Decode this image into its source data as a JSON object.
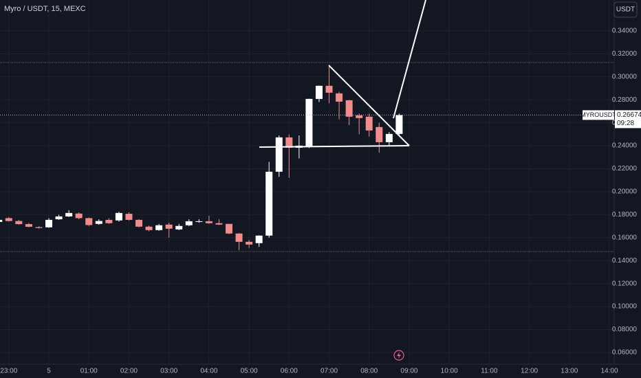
{
  "chart_data": {
    "type": "candlestick",
    "title": "Myro / USDT, 15, MEXC",
    "currency": "USDT",
    "symbol_label": "MYROUSDT",
    "last_price": 0.26674,
    "countdown": "09:28",
    "up_color": "#ffffff",
    "down_color": "#f28b8b",
    "x": [
      -0.25,
      0,
      0.25,
      0.5,
      0.75,
      1,
      1.25,
      1.5,
      1.75,
      2,
      2.25,
      2.5,
      2.75,
      3,
      3.25,
      3.5,
      3.75,
      4,
      4.25,
      4.5,
      4.75,
      5,
      5.25,
      5.5,
      5.75,
      6,
      6.25,
      6.5,
      6.75,
      7,
      7.25,
      7.5,
      7.75,
      8,
      8.25,
      8.5,
      8.75,
      9,
      9.25,
      9.5,
      9.75
    ],
    "open": [
      0.1737,
      0.177,
      0.1745,
      0.1718,
      0.1692,
      0.169,
      0.176,
      0.1785,
      0.181,
      0.177,
      0.172,
      0.1755,
      0.175,
      0.1808,
      0.1755,
      0.1696,
      0.1666,
      0.1714,
      0.1672,
      0.1708,
      0.1737,
      0.1743,
      0.1726,
      0.172,
      0.1636,
      0.1564,
      0.1552,
      0.1618,
      0.2174,
      0.2473,
      0.2383,
      0.2395,
      0.2808,
      0.2922,
      0.2856,
      0.2796,
      0.2665,
      0.2653,
      0.2563,
      0.2431,
      0.2503
    ],
    "high": [
      0.176,
      0.178,
      0.1755,
      0.1728,
      0.17,
      0.177,
      0.18,
      0.184,
      0.182,
      0.1775,
      0.176,
      0.177,
      0.1825,
      0.182,
      0.176,
      0.1705,
      0.172,
      0.173,
      0.172,
      0.176,
      0.176,
      0.179,
      0.176,
      0.1722,
      0.164,
      0.158,
      0.162,
      0.226,
      0.249,
      0.25,
      0.249,
      0.281,
      0.2925,
      0.309,
      0.287,
      0.28,
      0.268,
      0.268,
      0.26,
      0.252,
      0.268
    ],
    "low": [
      0.1725,
      0.174,
      0.1712,
      0.169,
      0.168,
      0.1686,
      0.1755,
      0.178,
      0.176,
      0.17,
      0.1712,
      0.172,
      0.174,
      0.175,
      0.169,
      0.1655,
      0.166,
      0.16,
      0.1665,
      0.17,
      0.173,
      0.172,
      0.171,
      0.163,
      0.149,
      0.151,
      0.152,
      0.16,
      0.213,
      0.212,
      0.229,
      0.238,
      0.278,
      0.277,
      0.263,
      0.258,
      0.25,
      0.248,
      0.234,
      0.24,
      0.249
    ],
    "close": [
      0.1755,
      0.1745,
      0.1718,
      0.1695,
      0.1684,
      0.1755,
      0.1785,
      0.1815,
      0.177,
      0.171,
      0.1745,
      0.1726,
      0.1815,
      0.1755,
      0.1696,
      0.1666,
      0.1708,
      0.1678,
      0.1702,
      0.1743,
      0.1743,
      0.1726,
      0.1714,
      0.1636,
      0.1564,
      0.154,
      0.1618,
      0.2174,
      0.2473,
      0.2383,
      0.2401,
      0.2808,
      0.2922,
      0.2862,
      0.2784,
      0.2653,
      0.2641,
      0.2533,
      0.2431,
      0.2503,
      0.2667
    ],
    "xlim": [
      -0.22,
      15.12
    ],
    "xticks": [
      {
        "value": 0,
        "label": "23:00"
      },
      {
        "value": 1,
        "label": "5"
      },
      {
        "value": 2,
        "label": "01:00"
      },
      {
        "value": 3,
        "label": "02:00"
      },
      {
        "value": 4,
        "label": "03:00"
      },
      {
        "value": 5,
        "label": "04:00"
      },
      {
        "value": 6,
        "label": "05:00"
      },
      {
        "value": 7,
        "label": "06:00"
      },
      {
        "value": 8,
        "label": "07:00"
      },
      {
        "value": 9,
        "label": "08:00"
      },
      {
        "value": 10,
        "label": "09:00"
      },
      {
        "value": 11,
        "label": "10:00"
      },
      {
        "value": 12,
        "label": "11:00"
      },
      {
        "value": 13,
        "label": "12:00"
      },
      {
        "value": 14,
        "label": "13:00"
      },
      {
        "value": 15,
        "label": "14:00"
      }
    ],
    "ylim": [
      0.0498,
      0.3669
    ],
    "yticks": [
      {
        "value": 0.06,
        "label": "0.06000"
      },
      {
        "value": 0.08,
        "label": "0.08000"
      },
      {
        "value": 0.1,
        "label": "0.10000"
      },
      {
        "value": 0.12,
        "label": "0.12000"
      },
      {
        "value": 0.14,
        "label": "0.14000"
      },
      {
        "value": 0.16,
        "label": "0.16000"
      },
      {
        "value": 0.18,
        "label": "0.18000"
      },
      {
        "value": 0.2,
        "label": "0.20000"
      },
      {
        "value": 0.22,
        "label": "0.22000"
      },
      {
        "value": 0.24,
        "label": "0.24000"
      },
      {
        "value": 0.26,
        "label": "0.26000"
      },
      {
        "value": 0.28,
        "label": "0.28000"
      },
      {
        "value": 0.3,
        "label": "0.30000"
      },
      {
        "value": 0.32,
        "label": "0.32000"
      },
      {
        "value": 0.34,
        "label": "0.34000"
      }
    ],
    "grid": true
  }
}
